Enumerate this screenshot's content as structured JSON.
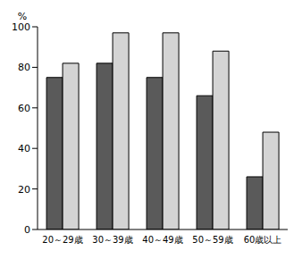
{
  "chart_data": {
    "type": "bar",
    "ylabel": "%",
    "categories": [
      "20～29歳",
      "30～39歳",
      "40～49歳",
      "50～59歳",
      "60歳以上"
    ],
    "series": [
      {
        "color": "#5a5a5a",
        "values": [
          75,
          82,
          75,
          66,
          26
        ]
      },
      {
        "color": "#d4d4d4",
        "values": [
          82,
          97,
          97,
          88,
          48
        ]
      }
    ],
    "ylim": [
      0,
      100
    ],
    "yticks": [
      0,
      20,
      40,
      60,
      80,
      100
    ],
    "grid": false
  }
}
